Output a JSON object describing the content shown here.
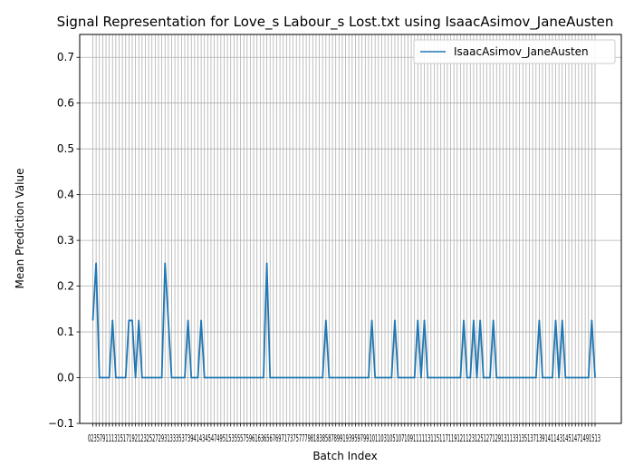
{
  "chart_data": {
    "type": "line",
    "title": "Signal Representation for Love_s Labour_s Lost.txt using IsaacAsimov_JaneAusten",
    "xlabel": "Batch Index",
    "ylabel": "Mean Prediction Value",
    "ylim": [
      -0.1,
      0.75
    ],
    "yticks": [
      -0.1,
      0.0,
      0.1,
      0.2,
      0.3,
      0.4,
      0.5,
      0.6,
      0.7
    ],
    "ytick_labels": [
      "−0.1",
      "0.0",
      "0.1",
      "0.2",
      "0.3",
      "0.4",
      "0.5",
      "0.6",
      "0.7"
    ],
    "xlim": [
      -4,
      161
    ],
    "x_range": [
      0,
      153
    ],
    "grid": true,
    "legend": "upper right",
    "colors": {
      "series": "#1f77b4",
      "grid": "#b0b0b0"
    },
    "series": [
      {
        "name": "IsaacAsimov_JaneAusten",
        "x": [
          0,
          1,
          2,
          3,
          4,
          5,
          6,
          7,
          8,
          9,
          10,
          11,
          12,
          13,
          14,
          15,
          16,
          17,
          18,
          19,
          20,
          21,
          22,
          23,
          24,
          25,
          26,
          27,
          28,
          29,
          30,
          31,
          32,
          33,
          34,
          35,
          36,
          37,
          38,
          39,
          40,
          41,
          42,
          43,
          44,
          45,
          46,
          47,
          48,
          49,
          50,
          51,
          52,
          53,
          54,
          55,
          56,
          57,
          58,
          59,
          60,
          61,
          62,
          63,
          64,
          65,
          66,
          67,
          68,
          69,
          70,
          71,
          72,
          73,
          74,
          75,
          76,
          77,
          78,
          79,
          80,
          81,
          82,
          83,
          84,
          85,
          86,
          87,
          88,
          89,
          90,
          91,
          92,
          93,
          94,
          95,
          96,
          97,
          98,
          99,
          100,
          101,
          102,
          103,
          104,
          105,
          106,
          107,
          108,
          109,
          110,
          111,
          112,
          113,
          114,
          115,
          116,
          117,
          118,
          119,
          120,
          121,
          122,
          123,
          124,
          125,
          126,
          127,
          128,
          129,
          130,
          131,
          132,
          133,
          134,
          135,
          136,
          137,
          138,
          139,
          140,
          141,
          142,
          143,
          144,
          145,
          146,
          147,
          148,
          149,
          150,
          151,
          152,
          153
        ],
        "y": [
          0.125,
          0.25,
          0,
          0,
          0,
          0,
          0.125,
          0,
          0,
          0,
          0,
          0.125,
          0.125,
          0,
          0.125,
          0,
          0,
          0,
          0,
          0,
          0,
          0,
          0.25,
          0.125,
          0,
          0,
          0,
          0,
          0,
          0.125,
          0,
          0,
          0,
          0.125,
          0,
          0,
          0,
          0,
          0,
          0,
          0,
          0,
          0,
          0,
          0,
          0,
          0,
          0,
          0,
          0,
          0,
          0,
          0,
          0.25,
          0,
          0,
          0,
          0,
          0,
          0,
          0,
          0,
          0,
          0,
          0,
          0,
          0,
          0,
          0,
          0,
          0,
          0.125,
          0,
          0,
          0,
          0,
          0,
          0,
          0,
          0,
          0,
          0,
          0,
          0,
          0,
          0.125,
          0,
          0,
          0,
          0,
          0,
          0,
          0.125,
          0,
          0,
          0,
          0,
          0,
          0,
          0.125,
          0,
          0.125,
          0,
          0,
          0,
          0,
          0,
          0,
          0,
          0,
          0,
          0,
          0,
          0.125,
          0,
          0,
          0.125,
          0,
          0.125,
          0,
          0,
          0,
          0.125,
          0,
          0,
          0,
          0,
          0,
          0,
          0,
          0,
          0,
          0,
          0,
          0,
          0,
          0.125,
          0,
          0,
          0,
          0,
          0.125,
          0,
          0.125,
          0,
          0,
          0,
          0,
          0,
          0,
          0,
          0,
          0.125,
          0
        ]
      }
    ],
    "xtick_labels_visible": "0235791113151719212325272931333537394143454749515355575961636567697173757779818385878991939597991011031051071091111131151171191211231251271291311331351371391411431451471491513"
  }
}
